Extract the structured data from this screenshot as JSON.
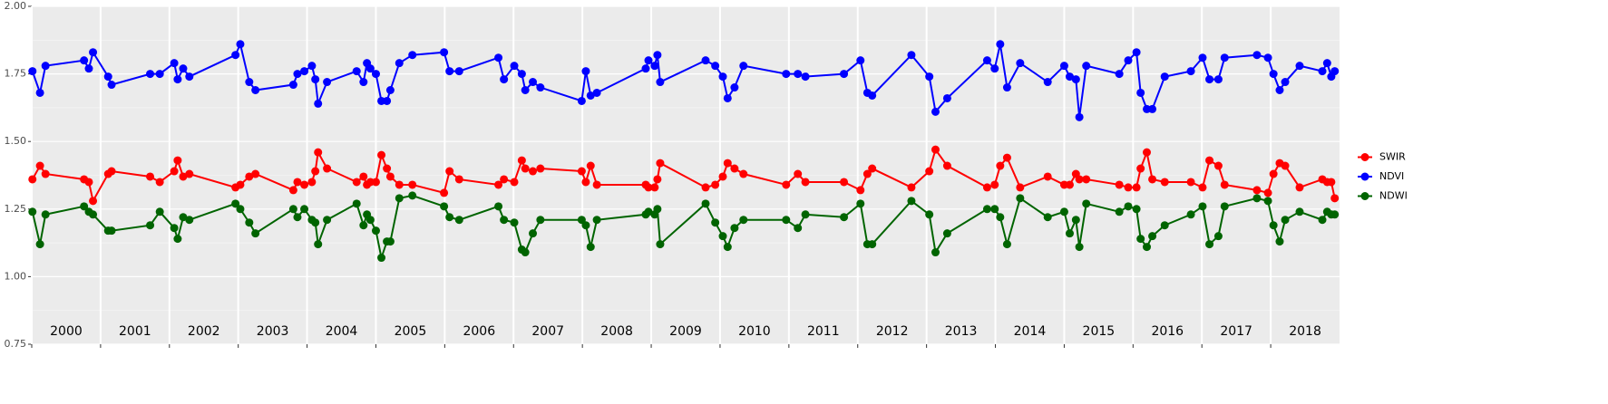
{
  "chart_data": {
    "type": "line",
    "x": [
      2000.01,
      2000.12,
      2000.2,
      2000.76,
      2000.83,
      2000.89,
      2001.11,
      2001.16,
      2001.72,
      2001.86,
      2002.07,
      2002.12,
      2002.2,
      2002.29,
      2002.96,
      2003.03,
      2003.16,
      2003.25,
      2003.8,
      2003.86,
      2003.96,
      2004.07,
      2004.12,
      2004.16,
      2004.29,
      2004.72,
      2004.82,
      2004.87,
      2004.92,
      2005.0,
      2005.08,
      2005.16,
      2005.21,
      2005.34,
      2005.53,
      2005.99,
      2006.07,
      2006.21,
      2006.78,
      2006.86,
      2007.01,
      2007.12,
      2007.17,
      2007.28,
      2007.39,
      2007.99,
      2008.05,
      2008.12,
      2008.21,
      2008.92,
      2008.96,
      2009.05,
      2009.09,
      2009.13,
      2009.79,
      2009.93,
      2010.04,
      2010.11,
      2010.21,
      2010.34,
      2010.96,
      2011.13,
      2011.24,
      2011.8,
      2012.04,
      2012.14,
      2012.21,
      2012.78,
      2013.04,
      2013.13,
      2013.3,
      2013.88,
      2013.99,
      2014.07,
      2014.17,
      2014.36,
      2014.76,
      2015.0,
      2015.08,
      2015.17,
      2015.22,
      2015.32,
      2015.8,
      2015.93,
      2016.05,
      2016.11,
      2016.2,
      2016.28,
      2016.46,
      2016.84,
      2017.01,
      2017.11,
      2017.24,
      2017.33,
      2017.8,
      2017.96,
      2018.04,
      2018.13,
      2018.21,
      2018.42,
      2018.75,
      2018.82,
      2018.88,
      2018.93
    ],
    "series": [
      {
        "name": "SWIR",
        "color": "#ff0000",
        "values": [
          1.36,
          1.41,
          1.38,
          1.36,
          1.35,
          1.28,
          1.38,
          1.39,
          1.37,
          1.35,
          1.39,
          1.43,
          1.37,
          1.38,
          1.33,
          1.34,
          1.37,
          1.38,
          1.32,
          1.35,
          1.34,
          1.35,
          1.39,
          1.46,
          1.4,
          1.35,
          1.37,
          1.34,
          1.35,
          1.35,
          1.45,
          1.4,
          1.37,
          1.34,
          1.34,
          1.31,
          1.39,
          1.36,
          1.34,
          1.36,
          1.35,
          1.43,
          1.4,
          1.39,
          1.4,
          1.39,
          1.35,
          1.41,
          1.34,
          1.34,
          1.33,
          1.33,
          1.36,
          1.42,
          1.33,
          1.34,
          1.37,
          1.42,
          1.4,
          1.38,
          1.34,
          1.38,
          1.35,
          1.35,
          1.32,
          1.38,
          1.4,
          1.33,
          1.39,
          1.47,
          1.41,
          1.33,
          1.34,
          1.41,
          1.44,
          1.33,
          1.37,
          1.34,
          1.34,
          1.38,
          1.36,
          1.36,
          1.34,
          1.33,
          1.33,
          1.4,
          1.46,
          1.36,
          1.35,
          1.35,
          1.33,
          1.43,
          1.41,
          1.34,
          1.32,
          1.31,
          1.38,
          1.42,
          1.41,
          1.33,
          1.36,
          1.35,
          1.35,
          1.29
        ]
      },
      {
        "name": "NDVI",
        "color": "#0000ff",
        "values": [
          1.76,
          1.68,
          1.78,
          1.8,
          1.77,
          1.83,
          1.74,
          1.71,
          1.75,
          1.75,
          1.79,
          1.73,
          1.77,
          1.74,
          1.82,
          1.86,
          1.72,
          1.69,
          1.71,
          1.75,
          1.76,
          1.78,
          1.73,
          1.64,
          1.72,
          1.76,
          1.72,
          1.79,
          1.77,
          1.75,
          1.65,
          1.65,
          1.69,
          1.79,
          1.82,
          1.83,
          1.76,
          1.76,
          1.81,
          1.73,
          1.78,
          1.75,
          1.69,
          1.72,
          1.7,
          1.65,
          1.76,
          1.67,
          1.68,
          1.77,
          1.8,
          1.78,
          1.82,
          1.72,
          1.8,
          1.78,
          1.74,
          1.66,
          1.7,
          1.78,
          1.75,
          1.75,
          1.74,
          1.75,
          1.8,
          1.68,
          1.67,
          1.82,
          1.74,
          1.61,
          1.66,
          1.8,
          1.77,
          1.86,
          1.7,
          1.79,
          1.72,
          1.78,
          1.74,
          1.73,
          1.59,
          1.78,
          1.75,
          1.8,
          1.83,
          1.68,
          1.62,
          1.62,
          1.74,
          1.76,
          1.81,
          1.73,
          1.73,
          1.81,
          1.82,
          1.81,
          1.75,
          1.69,
          1.72,
          1.78,
          1.76,
          1.79,
          1.74,
          1.76
        ]
      },
      {
        "name": "NDWI",
        "color": "#006400",
        "values": [
          1.24,
          1.12,
          1.23,
          1.26,
          1.24,
          1.23,
          1.17,
          1.17,
          1.19,
          1.24,
          1.18,
          1.14,
          1.22,
          1.21,
          1.27,
          1.25,
          1.2,
          1.16,
          1.25,
          1.22,
          1.25,
          1.21,
          1.2,
          1.12,
          1.21,
          1.27,
          1.19,
          1.23,
          1.21,
          1.17,
          1.07,
          1.13,
          1.13,
          1.29,
          1.3,
          1.26,
          1.22,
          1.21,
          1.26,
          1.21,
          1.2,
          1.1,
          1.09,
          1.16,
          1.21,
          1.21,
          1.19,
          1.11,
          1.21,
          1.23,
          1.24,
          1.23,
          1.25,
          1.12,
          1.27,
          1.2,
          1.15,
          1.11,
          1.18,
          1.21,
          1.21,
          1.18,
          1.23,
          1.22,
          1.27,
          1.12,
          1.12,
          1.28,
          1.23,
          1.09,
          1.16,
          1.25,
          1.25,
          1.22,
          1.12,
          1.29,
          1.22,
          1.24,
          1.16,
          1.21,
          1.11,
          1.27,
          1.24,
          1.26,
          1.25,
          1.14,
          1.11,
          1.15,
          1.19,
          1.23,
          1.26,
          1.12,
          1.15,
          1.26,
          1.29,
          1.28,
          1.19,
          1.13,
          1.21,
          1.24,
          1.21,
          1.24,
          1.23,
          1.23
        ]
      }
    ],
    "xlim": [
      2000,
      2019
    ],
    "xticks": [
      2000,
      2001,
      2002,
      2003,
      2004,
      2005,
      2006,
      2007,
      2008,
      2009,
      2010,
      2011,
      2012,
      2013,
      2014,
      2015,
      2016,
      2017,
      2018
    ],
    "ylim": [
      0.75,
      2.0
    ],
    "yticks": [
      {
        "value": 0.75,
        "label": "0.75"
      },
      {
        "value": 1.0,
        "label": "1.00"
      },
      {
        "value": 1.25,
        "label": "1.25"
      },
      {
        "value": 1.5,
        "label": "1.50"
      },
      {
        "value": 1.75,
        "label": "1.75"
      },
      {
        "value": 2.0,
        "label": "2.00"
      }
    ],
    "grid": true,
    "legend": "right"
  }
}
